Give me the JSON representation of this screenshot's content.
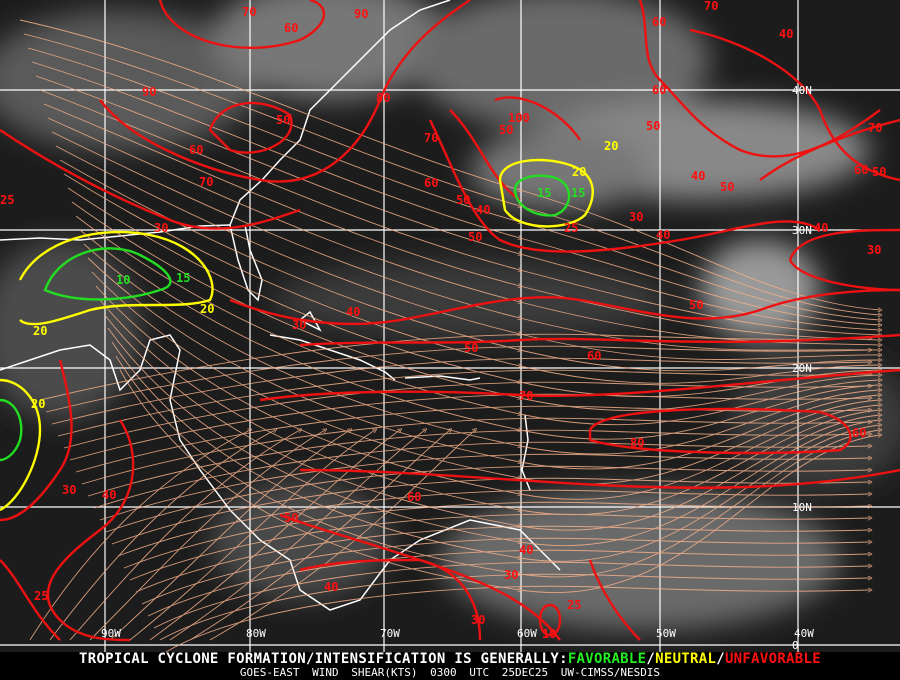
{
  "map": {
    "product": "GOES-East Wind Shear",
    "colors": {
      "unfavorable": "#ff1010",
      "neutral": "#ffff00",
      "favorable": "#22dd22",
      "streamline": "#f4b08a",
      "coast": "#ffffff",
      "grid": "#ffffff"
    },
    "longitude_labels": [
      "90W",
      "80W",
      "70W",
      "60W",
      "50W",
      "40W"
    ],
    "latitude_labels": [
      "40N",
      "30N",
      "20N",
      "10N",
      "0"
    ],
    "contour_labels_red": [
      "70",
      "60",
      "90",
      "90",
      "50",
      "60",
      "70",
      "30",
      "80",
      "70",
      "60",
      "50",
      "40",
      "50",
      "100",
      "50",
      "60",
      "70",
      "40",
      "60",
      "50",
      "70",
      "60",
      "50",
      "40",
      "50",
      "30",
      "40",
      "25",
      "40",
      "30",
      "50",
      "40",
      "30",
      "50",
      "60",
      "70",
      "80",
      "60",
      "30",
      "40",
      "50",
      "60",
      "40",
      "30",
      "40",
      "25",
      "25",
      "30",
      "10",
      "25"
    ],
    "contour_labels_yellow": [
      "20",
      "20",
      "20",
      "20",
      "20"
    ],
    "contour_labels_green": [
      "15",
      "15",
      "10",
      "15"
    ]
  },
  "footer": {
    "headline_prefix": "TROPICAL CYCLONE FORMATION/INTENSIFICATION IS GENERALLY:",
    "favorable": "FAVORABLE",
    "sep1": "/",
    "neutral": "NEUTRAL",
    "sep2": "/",
    "unfavorable": "UNFAVORABLE",
    "source": "GOES-EAST WIND SHEAR(KTS)",
    "time": "0300 UTC",
    "date": "25DEC25",
    "credit": "UW-CIMSS/NESDIS"
  }
}
